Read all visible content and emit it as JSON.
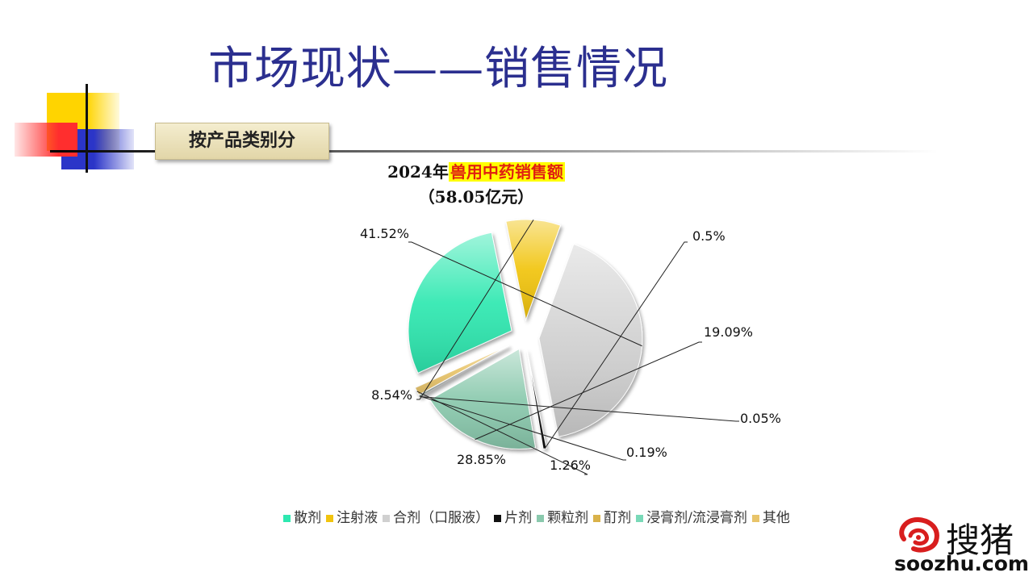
{
  "slide": {
    "title": "市场现状——销售情况",
    "section_tag": "按产品类别分"
  },
  "chart_data": {
    "type": "pie",
    "title_prefix": "2024年",
    "title_highlight": "兽用中药销售额",
    "subtitle": "（58.05亿元）",
    "categories": [
      "散剂",
      "注射液",
      "合剂（口服液）",
      "片剂",
      "颗粒剂",
      "酊剂",
      "浸膏剂/流浸膏剂",
      "其他"
    ],
    "values": [
      28.85,
      8.54,
      41.52,
      0.5,
      19.09,
      0.05,
      0.19,
      1.26
    ],
    "labels": [
      "28.85%",
      "8.54%",
      "41.52%",
      "0.5%",
      "19.09%",
      "0.05%",
      "0.19%",
      "1.26%"
    ],
    "colors": [
      "#2ee8b0",
      "#f1c40f",
      "#d0d0d0",
      "#111111",
      "#8ac9ad",
      "#d9b24a",
      "#79d9b8",
      "#e8c46a"
    ],
    "legend_position": "bottom",
    "exploded": true
  },
  "watermark": {
    "brand_cn": "搜猪",
    "url": "soozhu.com"
  }
}
